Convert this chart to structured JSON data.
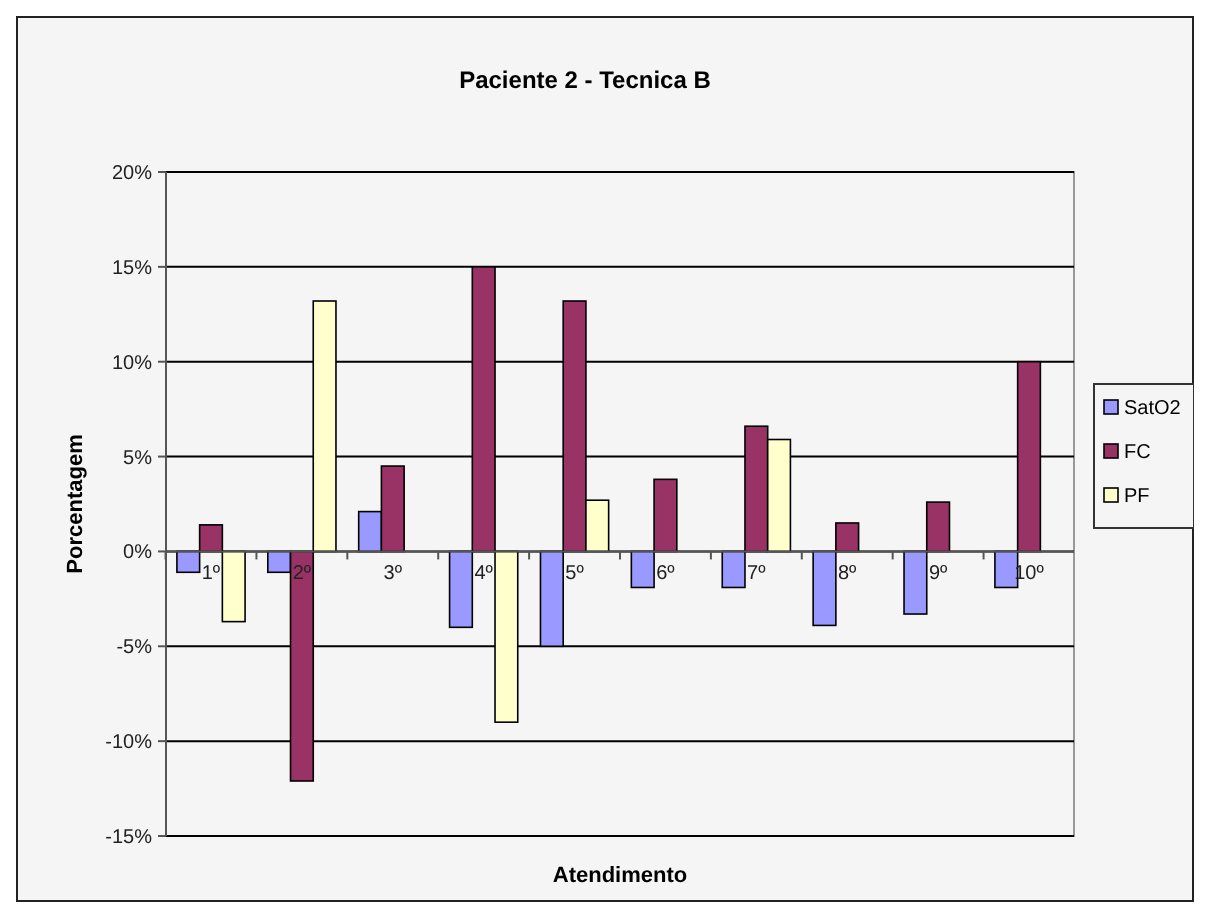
{
  "chart_data": {
    "type": "bar",
    "title": "Paciente 2 - Tecnica B",
    "xlabel": "Atendimento",
    "ylabel": "Porcentagem",
    "categories": [
      "1º",
      "2º",
      "3º",
      "4º",
      "5º",
      "6º",
      "7º",
      "8º",
      "9º",
      "10º"
    ],
    "series": [
      {
        "name": "SatO2",
        "color": "#9999ff",
        "values": [
          -1.1,
          -1.1,
          2.1,
          -4,
          -5,
          -1.9,
          -1.9,
          -3.9,
          -3.3,
          -1.9
        ]
      },
      {
        "name": "FC",
        "color": "#993366",
        "values": [
          1.4,
          -12.1,
          4.5,
          15,
          13.2,
          3.8,
          6.6,
          1.5,
          2.6,
          10
        ]
      },
      {
        "name": "PF",
        "color": "#ffffcc",
        "values": [
          -3.7,
          13.2,
          null,
          -9,
          2.7,
          null,
          5.9,
          null,
          null,
          null
        ]
      }
    ],
    "ylim": [
      -15,
      20
    ],
    "yticks": [
      {
        "value": -15,
        "label": "-15%"
      },
      {
        "value": -10,
        "label": "-10%"
      },
      {
        "value": -5,
        "label": "-5%"
      },
      {
        "value": 0,
        "label": "0%"
      },
      {
        "value": 5,
        "label": "5%"
      },
      {
        "value": 10,
        "label": "10%"
      },
      {
        "value": 15,
        "label": "15%"
      },
      {
        "value": 20,
        "label": "20%"
      }
    ],
    "grid": "y",
    "legend": "right"
  }
}
